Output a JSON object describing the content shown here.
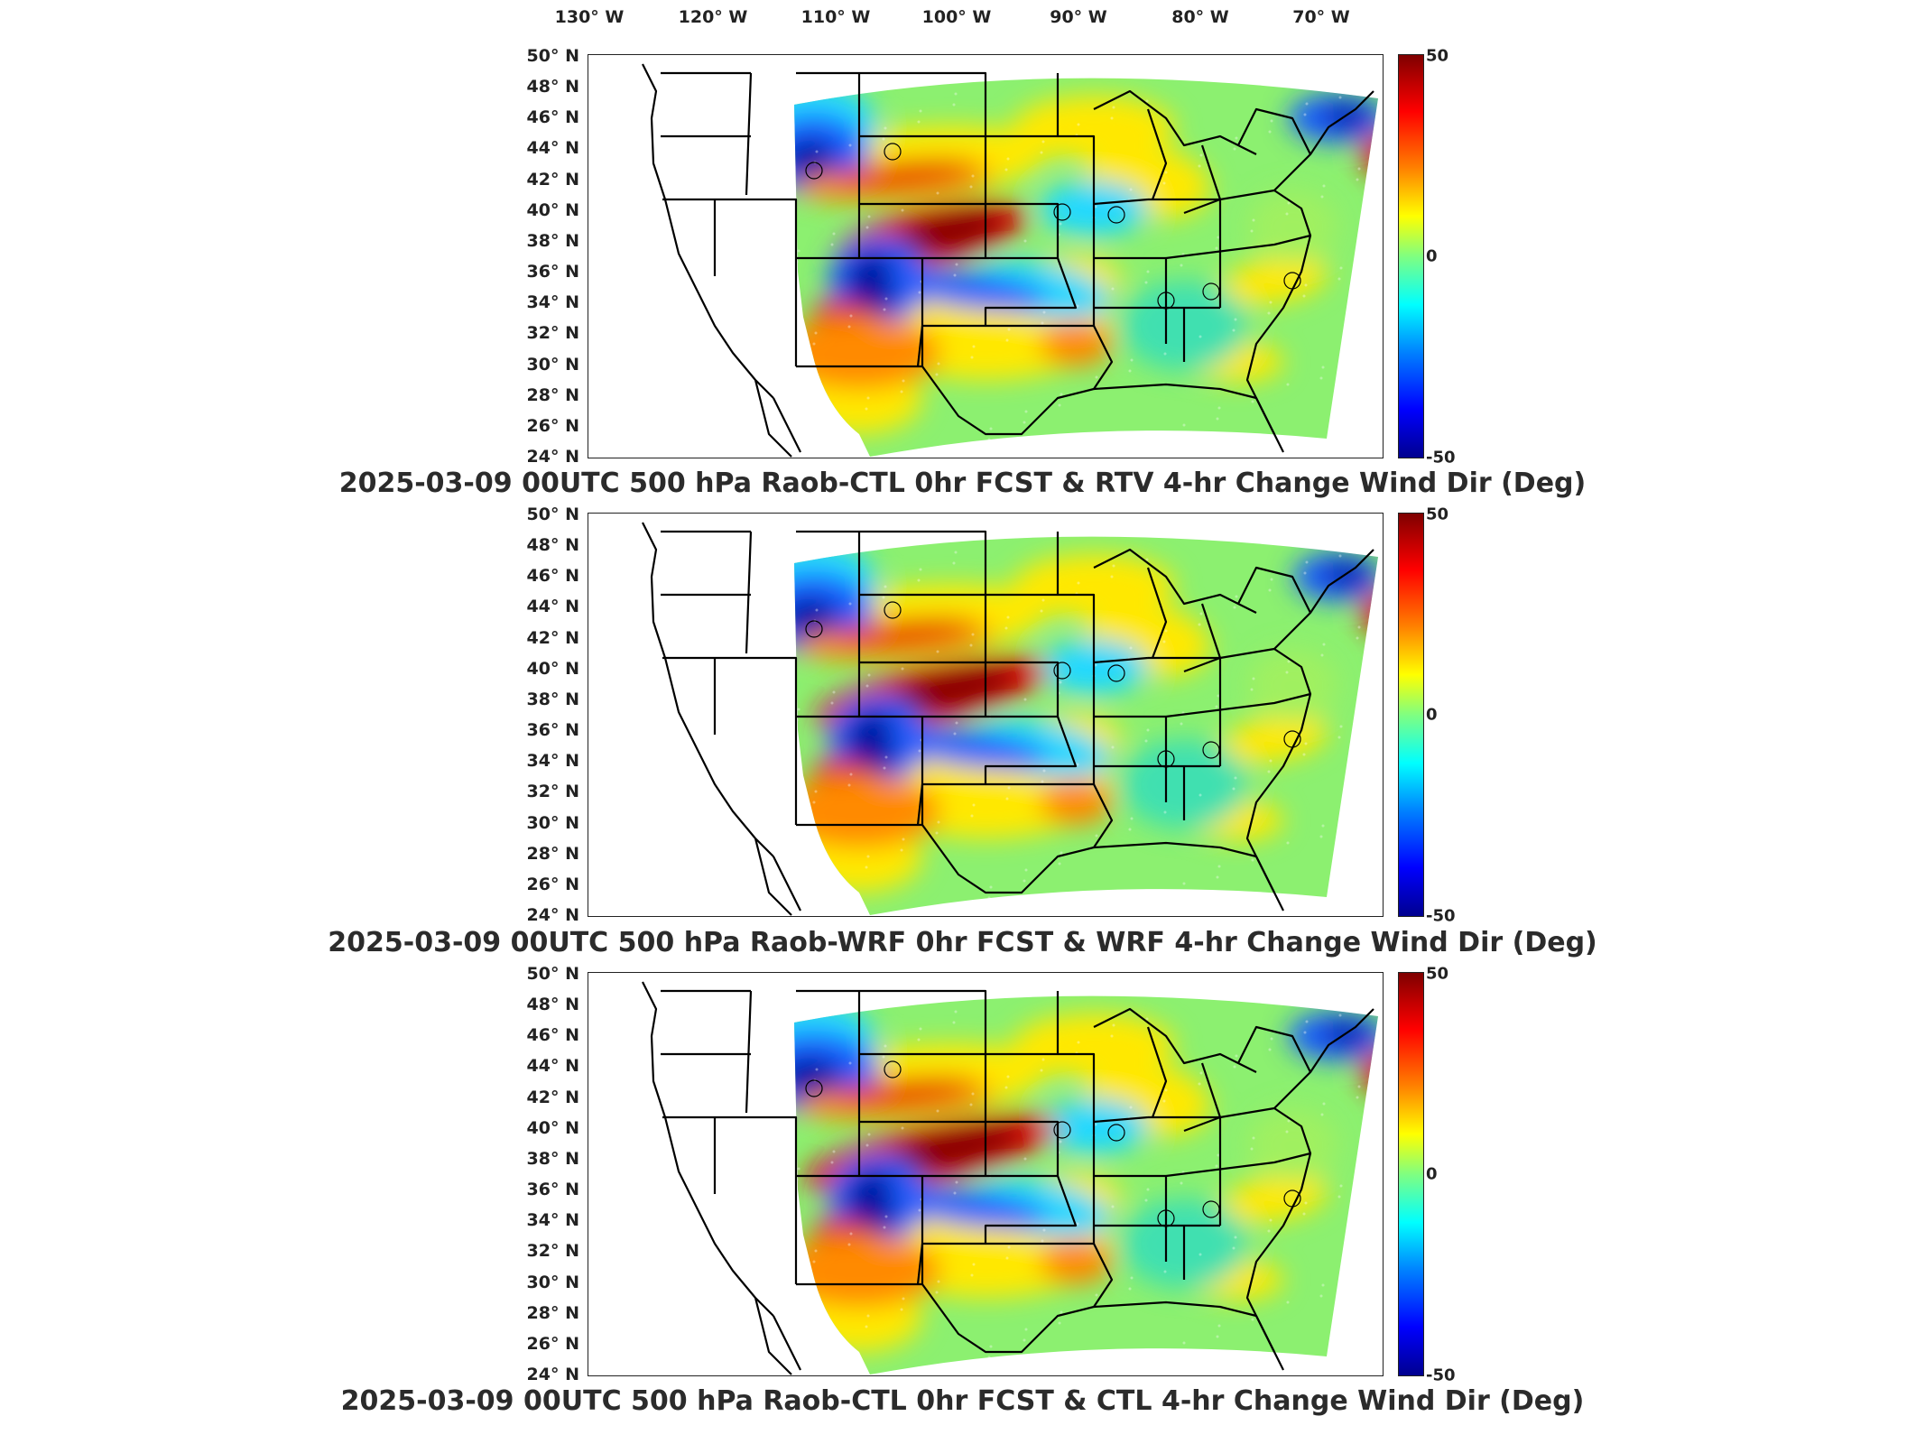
{
  "longitude_labels": [
    "130° W",
    "120° W",
    "110° W",
    "100° W",
    "90° W",
    "80° W",
    "70° W"
  ],
  "latitude_labels": [
    "50° N",
    "48° N",
    "46° N",
    "44° N",
    "42° N",
    "40° N",
    "38° N",
    "36° N",
    "34° N",
    "32° N",
    "30° N",
    "28° N",
    "26° N",
    "24° N"
  ],
  "colorbar": {
    "max": "50",
    "mid": "0",
    "min": "-50",
    "colormap": "jet"
  },
  "panels": [
    {
      "title": "2025-03-09 00UTC 500 hPa Raob-CTL 0hr FCST & RTV 4-hr Change Wind Dir (Deg)"
    },
    {
      "title": "2025-03-09 00UTC 500 hPa Raob-WRF 0hr FCST & WRF 4-hr Change Wind Dir (Deg)"
    },
    {
      "title": "2025-03-09 00UTC 500 hPa Raob-CTL 0hr FCST & CTL 4-hr Change Wind Dir (Deg)"
    }
  ],
  "colors": {
    "dark_red": "#7f0000",
    "red": "#e00000",
    "orange": "#ff8a00",
    "yellow": "#ffe800",
    "green": "#8cf070",
    "cyan": "#20d8ff",
    "blue": "#1e5eff",
    "dark_blue": "#0010a0"
  }
}
